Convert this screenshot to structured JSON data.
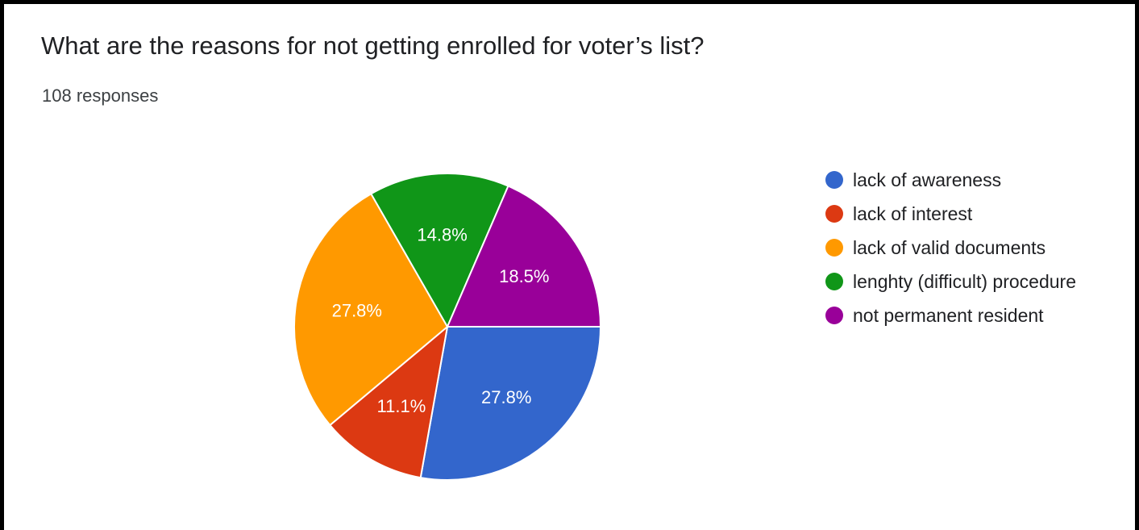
{
  "question": {
    "title": "What are the reasons for not getting enrolled for voter’s list?",
    "responses": "108 responses"
  },
  "chart_data": {
    "type": "pie",
    "title": "What are the reasons for not getting enrolled for voter’s list?",
    "subtitle": "108 responses",
    "legend_position": "right",
    "slices": [
      {
        "name": "lack of awareness",
        "value": 27.8,
        "label": "27.8%",
        "color": "#3366cc"
      },
      {
        "name": "lack of interest",
        "value": 11.1,
        "label": "11.1%",
        "color": "#dc3912"
      },
      {
        "name": "lack of valid documents",
        "value": 27.8,
        "label": "27.8%",
        "color": "#ff9900"
      },
      {
        "name": "lenghty (difficult) procedure",
        "value": 14.8,
        "label": "14.8%",
        "color": "#109618"
      },
      {
        "name": "not permanent resident",
        "value": 18.5,
        "label": "18.5%",
        "color": "#990099"
      }
    ]
  }
}
